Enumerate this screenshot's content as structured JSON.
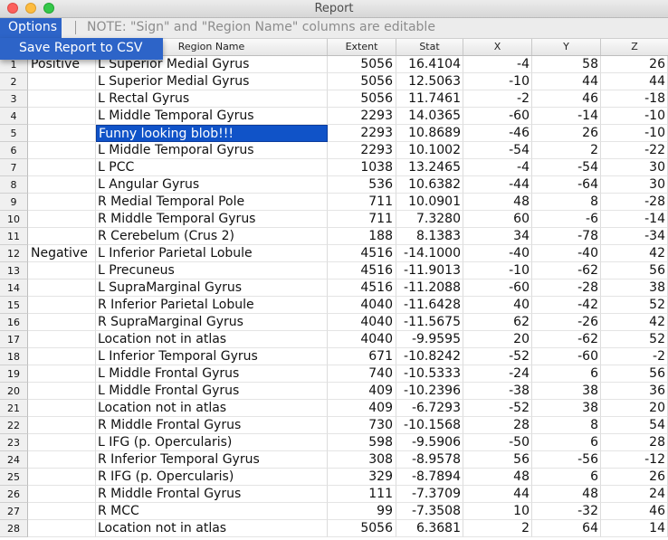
{
  "window": {
    "title": "Report"
  },
  "toolbar": {
    "options_label": "Options",
    "note": "NOTE: \"Sign\" and \"Region Name\" columns are editable"
  },
  "menu": {
    "items": [
      "Save Report to CSV"
    ]
  },
  "columns": {
    "region": "Region Name",
    "extent": "Extent",
    "stat": "Stat",
    "x": "X",
    "y": "Y",
    "z": "Z"
  },
  "selected_row": 5,
  "rows": [
    {
      "idx": "1",
      "sign": "Positive",
      "region": "L Superior Medial Gyrus",
      "extent": "5056",
      "stat": "16.4104",
      "x": "-4",
      "y": "58",
      "z": "26"
    },
    {
      "idx": "2",
      "sign": "",
      "region": "L Superior Medial Gyrus",
      "extent": "5056",
      "stat": "12.5063",
      "x": "-10",
      "y": "44",
      "z": "44"
    },
    {
      "idx": "3",
      "sign": "",
      "region": "L Rectal Gyrus",
      "extent": "5056",
      "stat": "11.7461",
      "x": "-2",
      "y": "46",
      "z": "-18"
    },
    {
      "idx": "4",
      "sign": "",
      "region": "L Middle Temporal Gyrus",
      "extent": "2293",
      "stat": "14.0365",
      "x": "-60",
      "y": "-14",
      "z": "-10"
    },
    {
      "idx": "5",
      "sign": "",
      "region": "Funny looking blob!!!",
      "extent": "2293",
      "stat": "10.8689",
      "x": "-46",
      "y": "26",
      "z": "-10"
    },
    {
      "idx": "6",
      "sign": "",
      "region": "L Middle Temporal Gyrus",
      "extent": "2293",
      "stat": "10.1002",
      "x": "-54",
      "y": "2",
      "z": "-22"
    },
    {
      "idx": "7",
      "sign": "",
      "region": "L PCC",
      "extent": "1038",
      "stat": "13.2465",
      "x": "-4",
      "y": "-54",
      "z": "30"
    },
    {
      "idx": "8",
      "sign": "",
      "region": "L Angular Gyrus",
      "extent": "536",
      "stat": "10.6382",
      "x": "-44",
      "y": "-64",
      "z": "30"
    },
    {
      "idx": "9",
      "sign": "",
      "region": "R Medial Temporal Pole",
      "extent": "711",
      "stat": "10.0901",
      "x": "48",
      "y": "8",
      "z": "-28"
    },
    {
      "idx": "10",
      "sign": "",
      "region": "R Middle Temporal Gyrus",
      "extent": "711",
      "stat": "7.3280",
      "x": "60",
      "y": "-6",
      "z": "-14"
    },
    {
      "idx": "11",
      "sign": "",
      "region": "R Cerebelum (Crus 2)",
      "extent": "188",
      "stat": "8.1383",
      "x": "34",
      "y": "-78",
      "z": "-34"
    },
    {
      "idx": "12",
      "sign": "Negative",
      "region": "L Inferior Parietal Lobule",
      "extent": "4516",
      "stat": "-14.1000",
      "x": "-40",
      "y": "-40",
      "z": "42"
    },
    {
      "idx": "13",
      "sign": "",
      "region": "L Precuneus",
      "extent": "4516",
      "stat": "-11.9013",
      "x": "-10",
      "y": "-62",
      "z": "56"
    },
    {
      "idx": "14",
      "sign": "",
      "region": "L SupraMarginal Gyrus",
      "extent": "4516",
      "stat": "-11.2088",
      "x": "-60",
      "y": "-28",
      "z": "38"
    },
    {
      "idx": "15",
      "sign": "",
      "region": "R Inferior Parietal Lobule",
      "extent": "4040",
      "stat": "-11.6428",
      "x": "40",
      "y": "-42",
      "z": "52"
    },
    {
      "idx": "16",
      "sign": "",
      "region": "R SupraMarginal Gyrus",
      "extent": "4040",
      "stat": "-11.5675",
      "x": "62",
      "y": "-26",
      "z": "42"
    },
    {
      "idx": "17",
      "sign": "",
      "region": "Location not in atlas",
      "extent": "4040",
      "stat": "-9.9595",
      "x": "20",
      "y": "-62",
      "z": "52"
    },
    {
      "idx": "18",
      "sign": "",
      "region": "L Inferior Temporal Gyrus",
      "extent": "671",
      "stat": "-10.8242",
      "x": "-52",
      "y": "-60",
      "z": "-2"
    },
    {
      "idx": "19",
      "sign": "",
      "region": "L Middle Frontal Gyrus",
      "extent": "740",
      "stat": "-10.5333",
      "x": "-24",
      "y": "6",
      "z": "56"
    },
    {
      "idx": "20",
      "sign": "",
      "region": "L Middle Frontal Gyrus",
      "extent": "409",
      "stat": "-10.2396",
      "x": "-38",
      "y": "38",
      "z": "36"
    },
    {
      "idx": "21",
      "sign": "",
      "region": "Location not in atlas",
      "extent": "409",
      "stat": "-6.7293",
      "x": "-52",
      "y": "38",
      "z": "20"
    },
    {
      "idx": "22",
      "sign": "",
      "region": "R Middle Frontal Gyrus",
      "extent": "730",
      "stat": "-10.1568",
      "x": "28",
      "y": "8",
      "z": "54"
    },
    {
      "idx": "23",
      "sign": "",
      "region": "L IFG (p. Opercularis)",
      "extent": "598",
      "stat": "-9.5906",
      "x": "-50",
      "y": "6",
      "z": "28"
    },
    {
      "idx": "24",
      "sign": "",
      "region": "R Inferior Temporal Gyrus",
      "extent": "308",
      "stat": "-8.9578",
      "x": "56",
      "y": "-56",
      "z": "-12"
    },
    {
      "idx": "25",
      "sign": "",
      "region": "R IFG (p. Opercularis)",
      "extent": "329",
      "stat": "-8.7894",
      "x": "48",
      "y": "6",
      "z": "26"
    },
    {
      "idx": "26",
      "sign": "",
      "region": "R Middle Frontal Gyrus",
      "extent": "111",
      "stat": "-7.3709",
      "x": "44",
      "y": "48",
      "z": "24"
    },
    {
      "idx": "27",
      "sign": "",
      "region": "R MCC",
      "extent": "99",
      "stat": "-7.3508",
      "x": "10",
      "y": "-32",
      "z": "46"
    },
    {
      "idx": "28",
      "sign": "",
      "region": "Location not in atlas",
      "extent": "5056",
      "stat": "6.3681",
      "x": "2",
      "y": "64",
      "z": "14"
    }
  ]
}
